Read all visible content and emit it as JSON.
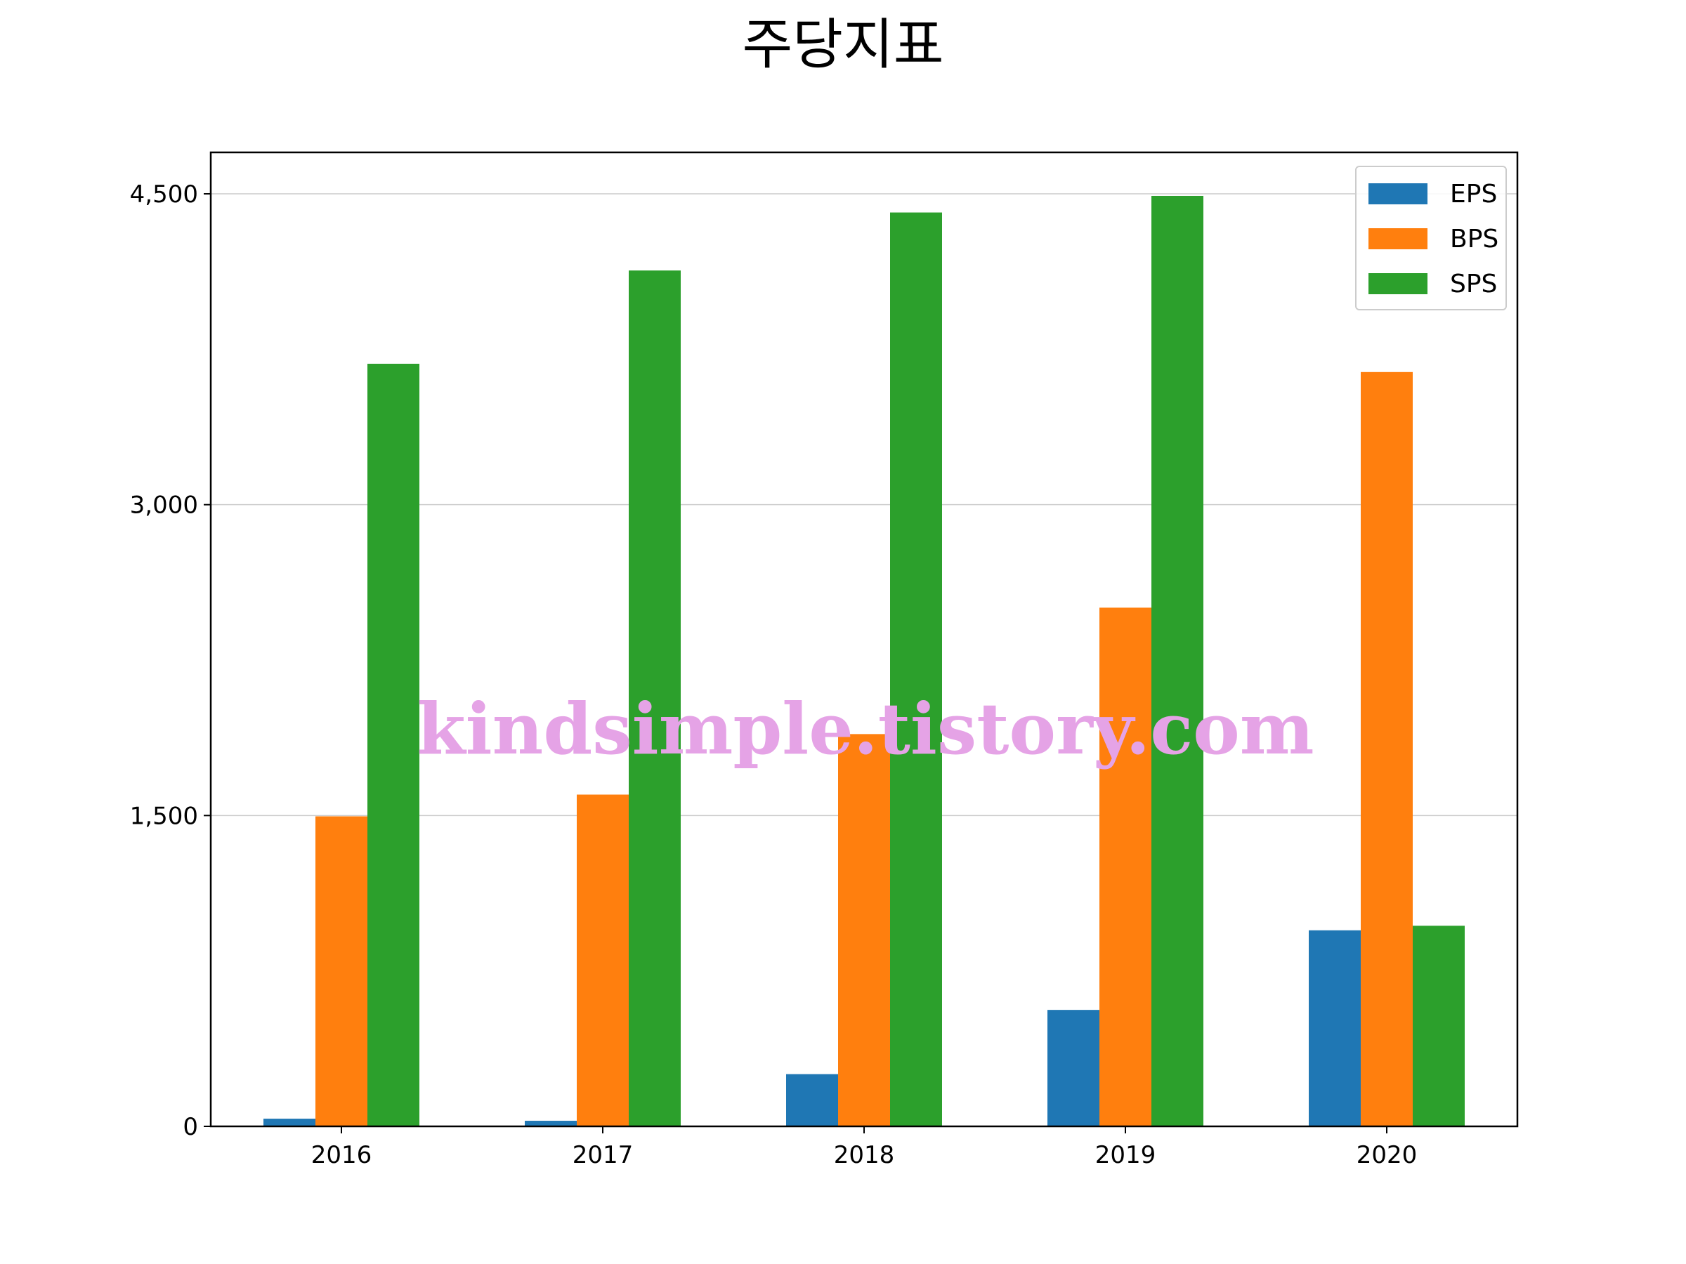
{
  "chart_data": {
    "type": "bar",
    "title": "주당지표",
    "xlabel": "",
    "ylabel": "",
    "categories": [
      "2016",
      "2017",
      "2018",
      "2019",
      "2020"
    ],
    "series": [
      {
        "name": "EPS",
        "color": "#1f77b4",
        "values": [
          37,
          27,
          252,
          562,
          946
        ]
      },
      {
        "name": "BPS",
        "color": "#ff7f0e",
        "values": [
          1496,
          1601,
          1893,
          2503,
          3640
        ]
      },
      {
        "name": "SPS",
        "color": "#2ca02c",
        "values": [
          3680,
          4130,
          4410,
          4490,
          968
        ]
      }
    ],
    "ylim": [
      0,
      4700
    ],
    "yticks": [
      0,
      1500,
      3000,
      4500
    ],
    "ytick_labels": [
      "0",
      "1,500",
      "3,000",
      "4,500"
    ],
    "grid": "y",
    "legend": "top-right",
    "watermark": "kindsimple.tistory.com"
  }
}
